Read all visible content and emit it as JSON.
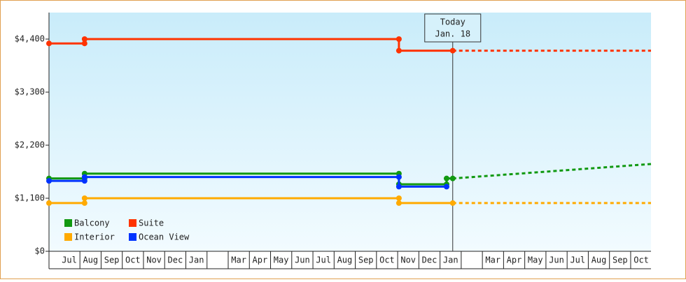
{
  "chart_data": {
    "type": "step-line",
    "categories": [
      "Jul",
      "Aug",
      "Sep",
      "Oct",
      "Nov",
      "Dec",
      "Jan",
      null,
      "Mar",
      "Apr",
      "May",
      "Jun",
      "Jul",
      "Aug",
      "Sep",
      "Oct",
      "Nov",
      "Dec",
      "Jan",
      null,
      "Mar",
      "Apr",
      "May",
      "Jun",
      "Jul",
      "Aug",
      "Sep",
      "Oct"
    ],
    "xlim": [
      -0.46,
      27.96
    ],
    "ylim": [
      0,
      4950
    ],
    "yticks": [
      {
        "value": 0,
        "label": "$0"
      },
      {
        "value": 1100,
        "label": "$1,100"
      },
      {
        "value": 2200,
        "label": "$2,200"
      },
      {
        "value": 3300,
        "label": "$3,300"
      },
      {
        "value": 4400,
        "label": "$4,400"
      }
    ],
    "annotation": {
      "x": 18.6,
      "lines": [
        "Today",
        "Jan. 18"
      ]
    },
    "series": [
      {
        "name": "Balcony",
        "color": "#119911",
        "x": [
          -0.46,
          1.22,
          1.22,
          16.06,
          16.06,
          18.31,
          18.31,
          18.6
        ],
        "values": [
          1510,
          1510,
          1610,
          1610,
          1390,
          1390,
          1510,
          1510
        ],
        "forecast": {
          "x": [
            18.6,
            27.96
          ],
          "values": [
            1510,
            1810
          ]
        }
      },
      {
        "name": "Suite",
        "color": "#ff3300",
        "x": [
          -0.46,
          1.22,
          1.22,
          16.06,
          16.06,
          18.6
        ],
        "values": [
          4310,
          4310,
          4400,
          4400,
          4160,
          4160
        ],
        "forecast": {
          "x": [
            18.6,
            27.96
          ],
          "values": [
            4160,
            4160
          ]
        }
      },
      {
        "name": "Interior",
        "color": "#ffaa00",
        "x": [
          -0.46,
          1.22,
          1.22,
          16.06,
          16.06,
          18.6
        ],
        "values": [
          1000,
          1000,
          1100,
          1100,
          1000,
          1000
        ],
        "forecast": {
          "x": [
            18.6,
            27.96
          ],
          "values": [
            1000,
            1000
          ]
        }
      },
      {
        "name": "Ocean View",
        "color": "#0033ff",
        "x": [
          -0.46,
          1.22,
          1.22,
          16.06,
          16.06,
          18.31
        ],
        "values": [
          1460,
          1460,
          1540,
          1540,
          1340,
          1340
        ]
      }
    ]
  }
}
